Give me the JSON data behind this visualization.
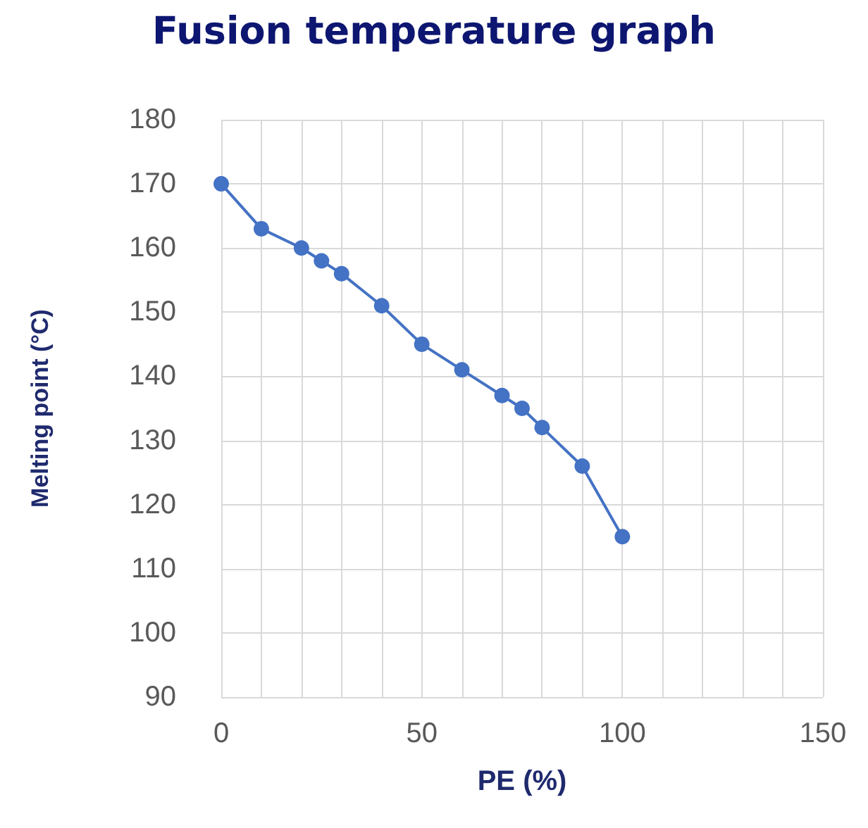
{
  "chart_data": {
    "type": "line",
    "title": "Fusion temperature graph",
    "xlabel": "PE (%)",
    "ylabel": "Melting point (°C)",
    "x": [
      0,
      10,
      20,
      25,
      30,
      40,
      50,
      60,
      70,
      75,
      80,
      90,
      100
    ],
    "series": [
      {
        "color": "#4472c4",
        "values": [
          170,
          163,
          160,
          158,
          156,
          151,
          145,
          141,
          137,
          135,
          132,
          126,
          115
        ]
      }
    ],
    "xlim": [
      0,
      150
    ],
    "xticks": [
      0,
      {
        "value": 10,
        "label": null
      },
      {
        "value": 20,
        "label": null
      },
      {
        "value": 30,
        "label": null
      },
      {
        "value": 40,
        "label": null
      },
      50,
      {
        "value": 60,
        "label": null
      },
      {
        "value": 70,
        "label": null
      },
      {
        "value": 80,
        "label": null
      },
      {
        "value": 90,
        "label": null
      },
      100,
      {
        "value": 110,
        "label": null
      },
      {
        "value": 120,
        "label": null
      },
      {
        "value": 130,
        "label": null
      },
      {
        "value": 140,
        "label": null
      },
      150
    ],
    "ylim": [
      90,
      180
    ],
    "yticks": [
      90,
      100,
      110,
      120,
      130,
      140,
      150,
      160,
      170,
      180
    ],
    "grid": true,
    "marker": "circle",
    "line_style": "solid"
  }
}
